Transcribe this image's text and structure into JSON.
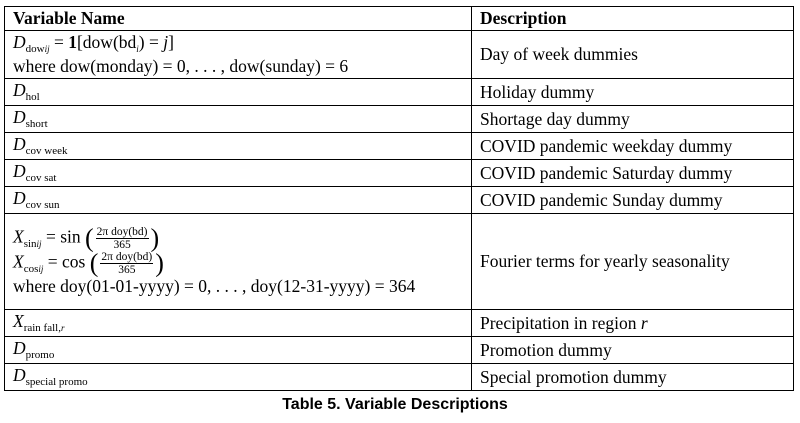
{
  "table": {
    "headers": [
      "Variable Name",
      "Description"
    ],
    "rows": [
      {
        "variable": "D_dow_ij = 1[dow(bd_i) = j]; where dow(monday) = 0, ..., dow(sunday) = 6",
        "description": "Day of week dummies"
      },
      {
        "variable": "D_hol",
        "description": "Holiday dummy"
      },
      {
        "variable": "D_short",
        "description": "Shortage day dummy"
      },
      {
        "variable": "D_cov week",
        "description": "COVID pandemic weekday dummy"
      },
      {
        "variable": "D_cov sat",
        "description": "COVID pandemic Saturday dummy"
      },
      {
        "variable": "D_cov sun",
        "description": "COVID pandemic Sunday dummy"
      },
      {
        "variable": "X_sin_ij = sin(2π doy(bd)_i / 365); X_cos_ij = cos(2π doy(bd)_i / 365); where doy(01-01-yyyy) = 0, ..., doy(12-31-yyyy) = 364",
        "description": "Fourier terms for yearly seasonality"
      },
      {
        "variable": "X_rain fall,r",
        "description": "Precipitation in region r"
      },
      {
        "variable": "D_promo",
        "description": "Promotion dummy"
      },
      {
        "variable": "D_special promo",
        "description": "Special promotion dummy"
      }
    ],
    "labels": {
      "dow_where": "where dow(monday) = 0, . . . , dow(sunday) = 6",
      "doy_where": "where doy(01-01-yyyy) = 0, . . . , doy(12-31-yyyy) = 364",
      "sub_dow": "dow",
      "sub_hol": "hol",
      "sub_short": "short",
      "sub_cov_week": "cov week",
      "sub_cov_sat": "cov sat",
      "sub_cov_sun": "cov sun",
      "sub_sin": "sin",
      "sub_cos": "cos",
      "sub_rain": "rain fall,",
      "sub_promo": "promo",
      "sub_special_promo": "special promo",
      "frac_num": "2π doy(bd)",
      "frac_den": "365",
      "fn_sin": "sin",
      "fn_cos": "cos"
    }
  },
  "caption": "Table 5. Variable Descriptions"
}
